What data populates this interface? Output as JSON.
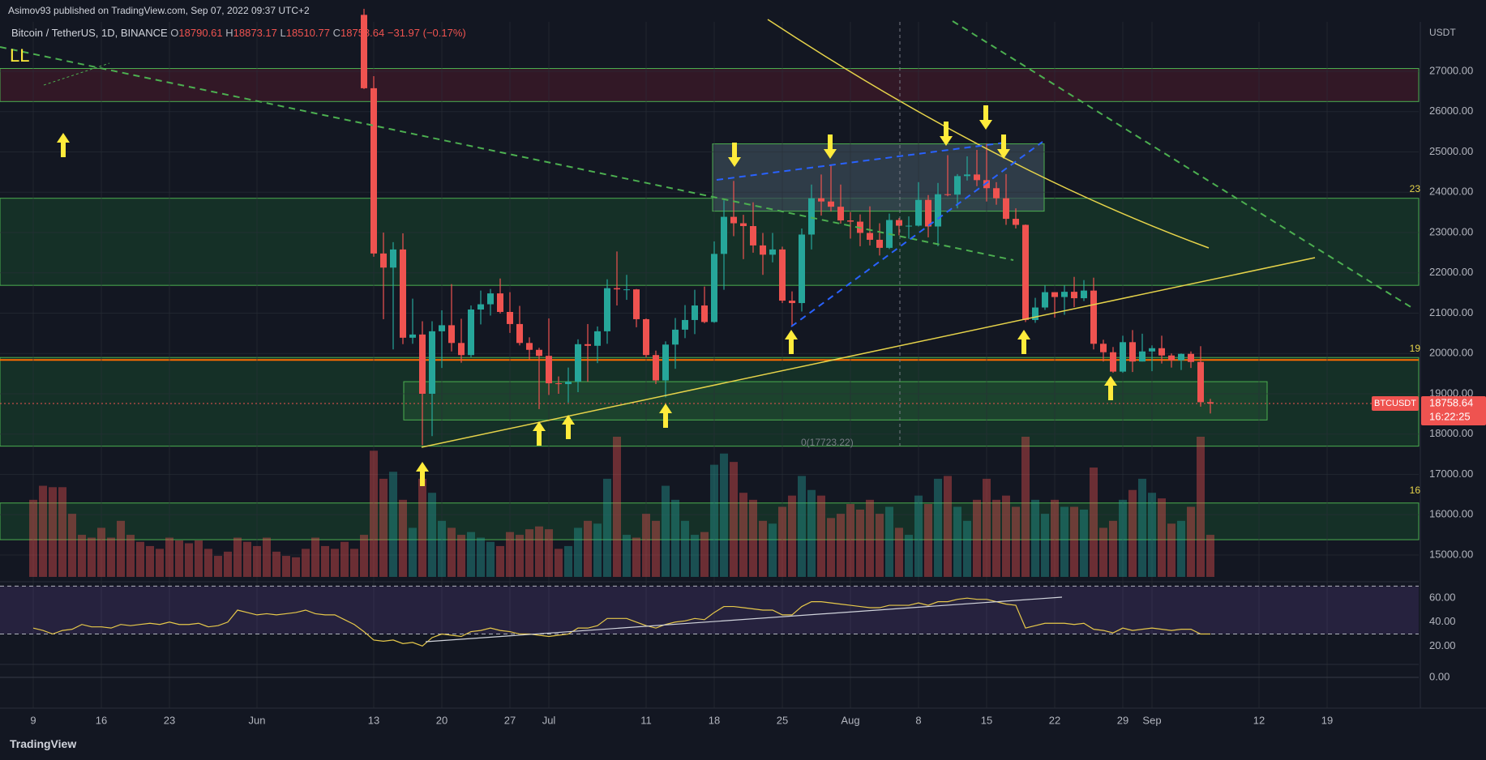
{
  "header": {
    "publisher": "Asimov93 published on TradingView.com, Sep 07, 2022 09:37 UTC+2",
    "symbol": "Bitcoin / TetherUS, 1D, BINANCE",
    "legend_keys": [
      "O",
      "H",
      "L",
      "C"
    ],
    "change": "−31.97 (−0.17%)",
    "footer": "TradingView"
  },
  "chart_data": {
    "type": "candlestick",
    "categories": [
      "9",
      null,
      null,
      null,
      null,
      null,
      null,
      "16",
      null,
      null,
      null,
      null,
      null,
      null,
      "23",
      null,
      null,
      null,
      null,
      null,
      null,
      null,
      null,
      "Jun",
      null,
      null,
      null,
      null,
      null,
      null,
      null,
      null,
      null,
      null,
      null,
      "13",
      null,
      null,
      null,
      null,
      null,
      null,
      "20",
      null,
      null,
      null,
      null,
      null,
      null,
      "27",
      null,
      null,
      null,
      "Jul",
      null,
      null,
      null,
      null,
      null,
      null,
      null,
      null,
      null,
      "11",
      null,
      null,
      null,
      null,
      null,
      null,
      "18",
      null,
      null,
      null,
      null,
      null,
      null,
      "25",
      null,
      null,
      null,
      null,
      null,
      null,
      "Aug",
      null,
      null,
      null,
      null,
      null,
      null,
      "8",
      null,
      null,
      null,
      null,
      null,
      null,
      "15",
      null,
      null,
      null,
      null,
      null,
      null,
      "22",
      null,
      null,
      null,
      null,
      null,
      null,
      "29",
      null,
      null,
      "Sep",
      null,
      null,
      null,
      null,
      null,
      null,
      null,
      null,
      null,
      null,
      "12",
      null,
      null,
      null,
      null,
      null,
      null,
      "19"
    ],
    "open": [
      null,
      null,
      null,
      null,
      null,
      null,
      null,
      null,
      null,
      null,
      null,
      null,
      null,
      null,
      null,
      null,
      null,
      null,
      null,
      null,
      null,
      null,
      null,
      null,
      null,
      null,
      null,
      null,
      null,
      null,
      null,
      null,
      null,
      null,
      28400,
      26580,
      22480,
      22130,
      22580,
      20390,
      20470,
      19000,
      20550,
      20700,
      20260,
      19960,
      21090,
      21220,
      21490,
      21030,
      20730,
      20260,
      20090,
      19940,
      19260,
      19240,
      19300,
      20230,
      20190,
      20550,
      21620,
      21590,
      21590,
      20850,
      19960,
      19330,
      20220,
      20590,
      20830,
      21190,
      20780,
      22470,
      23390,
      23230,
      23160,
      22680,
      22450,
      22580,
      21310,
      21250,
      22950,
      23850,
      23770,
      23640,
      23300,
      23270,
      22990,
      22820,
      22620,
      23310,
      23170,
      23170,
      23810,
      23150,
      23950,
      23940,
      24400,
      24440,
      24300,
      24100,
      23850,
      23340,
      23190,
      20830,
      21140,
      21520,
      21400,
      21530,
      21370,
      21560,
      20240,
      20030,
      19550,
      20280,
      19800,
      20050,
      20130,
      19950,
      19830,
      19990,
      19790,
      18790.61,
      null,
      null,
      null,
      null,
      null,
      null,
      null,
      null,
      null,
      null,
      null,
      null
    ],
    "high": [
      null,
      null,
      null,
      null,
      null,
      null,
      null,
      null,
      null,
      null,
      null,
      null,
      null,
      null,
      null,
      null,
      null,
      null,
      null,
      null,
      null,
      null,
      null,
      null,
      null,
      null,
      null,
      null,
      null,
      null,
      null,
      null,
      null,
      null,
      28550,
      26880,
      23000,
      22760,
      22980,
      21360,
      20800,
      20800,
      21070,
      21720,
      20860,
      21190,
      21560,
      21600,
      21860,
      21520,
      21180,
      20400,
      20140,
      20870,
      19430,
      19650,
      20350,
      20730,
      20670,
      21840,
      22530,
      21950,
      21600,
      20870,
      20070,
      20300,
      20880,
      21200,
      21580,
      21660,
      22780,
      23800,
      24280,
      23440,
      23750,
      22990,
      22990,
      22650,
      21540,
      23100,
      24190,
      24440,
      24670,
      24190,
      23510,
      23450,
      23650,
      23230,
      23470,
      23360,
      23400,
      24250,
      23930,
      24230,
      24920,
      24450,
      24890,
      25050,
      25210,
      24250,
      24450,
      23600,
      23200,
      21380,
      21690,
      21520,
      21690,
      21900,
      21820,
      21880,
      20340,
      20160,
      20440,
      20580,
      20490,
      20200,
      20440,
      20000,
      20000,
      20050,
      20180,
      18873.17,
      null,
      null,
      null,
      null,
      null,
      null,
      null,
      null,
      null,
      null,
      null,
      null
    ],
    "low": [
      null,
      null,
      null,
      null,
      null,
      null,
      null,
      null,
      null,
      null,
      null,
      null,
      null,
      null,
      null,
      null,
      null,
      null,
      null,
      null,
      null,
      null,
      null,
      null,
      null,
      null,
      null,
      null,
      null,
      null,
      null,
      null,
      null,
      null,
      26560,
      22400,
      20850,
      20100,
      20230,
      20240,
      17723,
      17950,
      19640,
      20050,
      19770,
      19900,
      20720,
      20940,
      20990,
      20510,
      20200,
      19850,
      18620,
      18970,
      19000,
      18780,
      19040,
      19300,
      19760,
      20240,
      21190,
      21330,
      20650,
      19900,
      19240,
      18910,
      19620,
      20380,
      20480,
      20750,
      20760,
      21580,
      22910,
      22340,
      22500,
      21950,
      22260,
      21250,
      20700,
      21040,
      22580,
      23420,
      23520,
      23220,
      22850,
      22660,
      22680,
      22430,
      22590,
      22930,
      22850,
      23150,
      22880,
      22660,
      23900,
      23600,
      24290,
      24150,
      23770,
      23690,
      23190,
      23100,
      20780,
      20760,
      21080,
      20890,
      20960,
      21150,
      21300,
      20100,
      19800,
      19520,
      19520,
      19540,
      19800,
      19560,
      19750,
      19650,
      19590,
      19640,
      18680,
      18510.77,
      null,
      null,
      null,
      null,
      null,
      null,
      null,
      null,
      null,
      null,
      null,
      null
    ],
    "close": [
      null,
      null,
      null,
      null,
      null,
      null,
      null,
      null,
      null,
      null,
      null,
      null,
      null,
      null,
      null,
      null,
      null,
      null,
      null,
      null,
      null,
      null,
      null,
      null,
      null,
      null,
      null,
      null,
      null,
      null,
      null,
      null,
      null,
      null,
      26580,
      22480,
      22130,
      22580,
      20390,
      20470,
      19000,
      20550,
      20700,
      20260,
      19960,
      21090,
      21220,
      21490,
      21030,
      20730,
      20260,
      20090,
      19940,
      19260,
      19240,
      19300,
      20230,
      20190,
      20550,
      21620,
      21590,
      21590,
      20850,
      19960,
      19330,
      20220,
      20590,
      20830,
      21190,
      20780,
      22470,
      23390,
      23230,
      23160,
      22680,
      22450,
      22580,
      21310,
      21250,
      22950,
      23850,
      23770,
      23640,
      23300,
      23270,
      22990,
      22820,
      22620,
      23310,
      23170,
      23170,
      23810,
      23150,
      23950,
      23940,
      24400,
      24440,
      24300,
      24100,
      23850,
      23340,
      23190,
      20830,
      21140,
      21520,
      21400,
      21530,
      21370,
      21560,
      20240,
      20030,
      19550,
      20280,
      19800,
      20050,
      20130,
      19950,
      19830,
      19990,
      19790,
      18790.61,
      18758.64,
      null,
      null,
      null,
      null,
      null,
      null,
      null,
      null,
      null,
      null,
      null,
      null
    ],
    "volume": [
      55,
      65,
      64,
      64,
      45,
      30,
      28,
      35,
      28,
      40,
      30,
      25,
      22,
      20,
      28,
      26,
      24,
      26,
      20,
      15,
      18,
      28,
      25,
      22,
      28,
      18,
      15,
      14,
      20,
      28,
      22,
      20,
      25,
      20,
      30,
      90,
      70,
      75,
      55,
      35,
      70,
      60,
      40,
      35,
      30,
      32,
      28,
      25,
      22,
      32,
      30,
      34,
      36,
      34,
      20,
      22,
      35,
      40,
      38,
      70,
      100,
      30,
      28,
      45,
      40,
      65,
      55,
      40,
      30,
      32,
      80,
      88,
      82,
      60,
      55,
      40,
      38,
      50,
      58,
      72,
      62,
      58,
      42,
      45,
      52,
      48,
      55,
      45,
      50,
      35,
      30,
      58,
      52,
      70,
      72,
      50,
      40,
      55,
      70,
      55,
      58,
      50,
      100,
      55,
      45,
      55,
      50,
      50,
      48,
      78,
      35,
      40,
      55,
      62,
      70,
      60,
      56,
      38,
      40,
      50,
      100,
      30,
      null,
      null,
      null,
      null,
      null,
      null,
      null,
      null,
      null,
      null,
      null,
      null
    ],
    "rsi": [
      35,
      33,
      30,
      33,
      34,
      38,
      36,
      36,
      35,
      38,
      37,
      38,
      39,
      38,
      40,
      38,
      38,
      39,
      36,
      37,
      40,
      50,
      48,
      46,
      47,
      46,
      47,
      48,
      50,
      47,
      46,
      46,
      42,
      38,
      32,
      25,
      24,
      25,
      22,
      23,
      20,
      27,
      30,
      29,
      28,
      32,
      33,
      35,
      33,
      32,
      30,
      30,
      29,
      28,
      29,
      30,
      35,
      35,
      37,
      43,
      43,
      43,
      40,
      37,
      35,
      38,
      40,
      41,
      43,
      42,
      48,
      53,
      53,
      52,
      51,
      50,
      50,
      46,
      46,
      53,
      57,
      57,
      56,
      55,
      54,
      53,
      52,
      52,
      54,
      54,
      54,
      56,
      54,
      57,
      57,
      59,
      60,
      59,
      59,
      57,
      55,
      54,
      35,
      37,
      39,
      39,
      39,
      38,
      39,
      34,
      33,
      31,
      35,
      33,
      34,
      35,
      34,
      33,
      34,
      34,
      30,
      30,
      null,
      null,
      null,
      null,
      null,
      null,
      null,
      null,
      null,
      null,
      null,
      null
    ],
    "up_color": "#26a69a",
    "down_color": "#ef5350",
    "ylim": [
      14457,
      28226
    ],
    "yticks": [
      {
        "value": 15000,
        "label": "15000.00"
      },
      {
        "value": 16000,
        "label": "16000.00"
      },
      {
        "value": 17000,
        "label": "17000.00"
      },
      {
        "value": 18000,
        "label": "18000.00"
      },
      {
        "value": 19000,
        "label": "19000.00"
      },
      {
        "value": 20000,
        "label": "20000.00"
      },
      {
        "value": 21000,
        "label": "21000.00"
      },
      {
        "value": 22000,
        "label": "22000.00"
      },
      {
        "value": 23000,
        "label": "23000.00"
      },
      {
        "value": 24000,
        "label": "24000.00"
      },
      {
        "value": 25000,
        "label": "25000.00"
      },
      {
        "value": 26000,
        "label": "26000.00"
      },
      {
        "value": 27000,
        "label": "27000.00"
      }
    ],
    "y_unit": "USDT",
    "grid": true,
    "zones": [
      {
        "low": 26250,
        "high": 27070,
        "color": "#3d1a28"
      },
      {
        "low": 21690,
        "high": 23850,
        "color": "#173a2a"
      },
      {
        "low": 17700,
        "high": 19900,
        "color": "#173a2a"
      },
      {
        "low": 15380,
        "high": 16290,
        "color": "#173a2a"
      },
      {
        "low": 23530,
        "high": 25200,
        "color": "#3a4a55"
      },
      {
        "low": 18350,
        "high": 19300,
        "color": "#1f4a30"
      }
    ],
    "level_line": 19840,
    "fib_label": "0(17723.22)",
    "pattern_label": "LL",
    "symbol_tag": "BTCUSDT",
    "countdown": "16:22:25",
    "profile_labels": [
      "23",
      "19",
      "16"
    ],
    "rsi_ylim": [
      6,
      73
    ],
    "rsi_yticks": [
      {
        "value": 20,
        "label": "20.00"
      },
      {
        "value": 40,
        "label": "40.00"
      },
      {
        "value": 60,
        "label": "60.00"
      }
    ],
    "rsi_bands": [
      30,
      70
    ],
    "macd_yticks": [
      {
        "value": 0,
        "label": "0.00"
      }
    ]
  }
}
